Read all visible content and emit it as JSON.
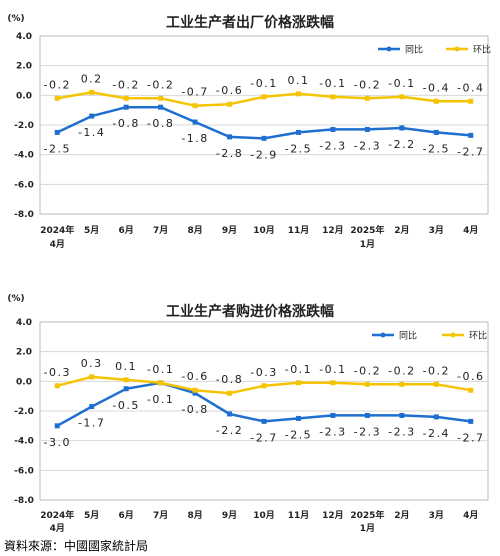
{
  "colors": {
    "yoy": "#1f6fd1",
    "mom": "#f5c400",
    "grid": "#d8d8d8",
    "plot_border": "#bbbbbb"
  },
  "chart_data": [
    {
      "type": "line",
      "title": "工业生产者出厂价格涨跌幅",
      "ylabel": "(%)",
      "ylim": [
        -8,
        4
      ],
      "yticks": [
        "4.0",
        "2.0",
        "0.0",
        "-2.0",
        "-4.0",
        "-6.0",
        "-8.0"
      ],
      "categories": [
        "2024年4月",
        "5月",
        "6月",
        "7月",
        "8月",
        "9月",
        "10月",
        "11月",
        "12月",
        "2025年1月",
        "2月",
        "3月",
        "4月"
      ],
      "tick_labels": [
        [
          "2024年",
          "4月"
        ],
        [
          "5月"
        ],
        [
          "6月"
        ],
        [
          "7月"
        ],
        [
          "8月"
        ],
        [
          "9月"
        ],
        [
          "10月"
        ],
        [
          "11月"
        ],
        [
          "12月"
        ],
        [
          "2025年",
          "1月"
        ],
        [
          "2月"
        ],
        [
          "3月"
        ],
        [
          "4月"
        ]
      ],
      "series": [
        {
          "name": "同比",
          "color": "#1f6fd1",
          "values": [
            -2.5,
            -1.4,
            -0.8,
            -0.8,
            -1.8,
            -2.8,
            -2.9,
            -2.5,
            -2.3,
            -2.3,
            -2.2,
            -2.5,
            -2.7
          ]
        },
        {
          "name": "环比",
          "color": "#f5c400",
          "values": [
            -0.2,
            0.2,
            -0.2,
            -0.2,
            -0.7,
            -0.6,
            -0.1,
            0.1,
            -0.1,
            -0.2,
            -0.1,
            -0.4,
            -0.4
          ]
        }
      ],
      "legend": "top-right",
      "grid": true
    },
    {
      "type": "line",
      "title": "工业生产者购进价格涨跌幅",
      "ylabel": "(%)",
      "ylim": [
        -8,
        4
      ],
      "yticks": [
        "4.0",
        "2.0",
        "0.0",
        "-2.0",
        "-4.0",
        "-6.0",
        "-8.0"
      ],
      "categories": [
        "2024年4月",
        "5月",
        "6月",
        "7月",
        "8月",
        "9月",
        "10月",
        "11月",
        "12月",
        "2025年1月",
        "2月",
        "3月",
        "4月"
      ],
      "tick_labels": [
        [
          "2024年",
          "4月"
        ],
        [
          "5月"
        ],
        [
          "6月"
        ],
        [
          "7月"
        ],
        [
          "8月"
        ],
        [
          "9月"
        ],
        [
          "10月"
        ],
        [
          "11月"
        ],
        [
          "12月"
        ],
        [
          "2025年",
          "1月"
        ],
        [
          "2月"
        ],
        [
          "3月"
        ],
        [
          "4月"
        ]
      ],
      "series": [
        {
          "name": "同比",
          "color": "#1f6fd1",
          "values": [
            -3.0,
            -1.7,
            -0.5,
            -0.1,
            -0.8,
            -2.2,
            -2.7,
            -2.5,
            -2.3,
            -2.3,
            -2.3,
            -2.4,
            -2.7
          ]
        },
        {
          "name": "环比",
          "color": "#f5c400",
          "values": [
            -0.3,
            0.3,
            0.1,
            -0.1,
            -0.6,
            -0.8,
            -0.3,
            -0.1,
            -0.1,
            -0.2,
            -0.2,
            -0.2,
            -0.6
          ]
        }
      ],
      "legend": "top-right",
      "grid": true
    }
  ],
  "source_label": "資料來源：中國國家統計局"
}
